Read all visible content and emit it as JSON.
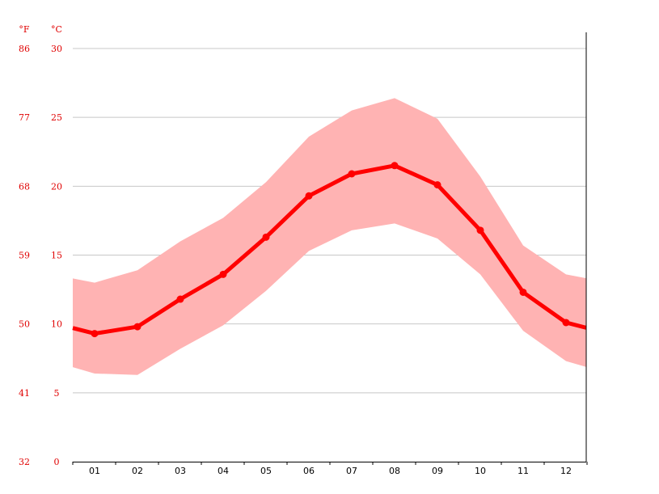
{
  "chart_data": {
    "type": "line",
    "categories": [
      "01",
      "02",
      "03",
      "04",
      "05",
      "06",
      "07",
      "08",
      "09",
      "10",
      "11",
      "12"
    ],
    "y_unit_left_outer": "°F",
    "y_unit_left_inner": "°C",
    "yticks_c": [
      "0",
      "5",
      "10",
      "15",
      "20",
      "25",
      "30"
    ],
    "yticks_f": [
      "32",
      "41",
      "50",
      "59",
      "68",
      "77",
      "86"
    ],
    "ylim": [
      0,
      30
    ],
    "grid": true,
    "series": [
      {
        "role": "mean",
        "values": [
          9.3,
          9.8,
          11.8,
          13.6,
          16.3,
          19.3,
          20.9,
          21.5,
          20.1,
          16.8,
          12.3,
          10.1
        ]
      },
      {
        "role": "max",
        "values": [
          13.0,
          13.9,
          16.0,
          17.7,
          20.3,
          23.6,
          25.5,
          26.4,
          24.9,
          20.7,
          15.7,
          13.6
        ]
      },
      {
        "role": "min",
        "values": [
          6.4,
          6.3,
          8.2,
          9.9,
          12.4,
          15.3,
          16.8,
          17.3,
          16.2,
          13.6,
          9.5,
          7.3
        ]
      }
    ],
    "colors": {
      "line": "#ff0000",
      "band": "#ffb3b3",
      "grid": "#c8c8c8",
      "labels": "#e00000"
    }
  }
}
